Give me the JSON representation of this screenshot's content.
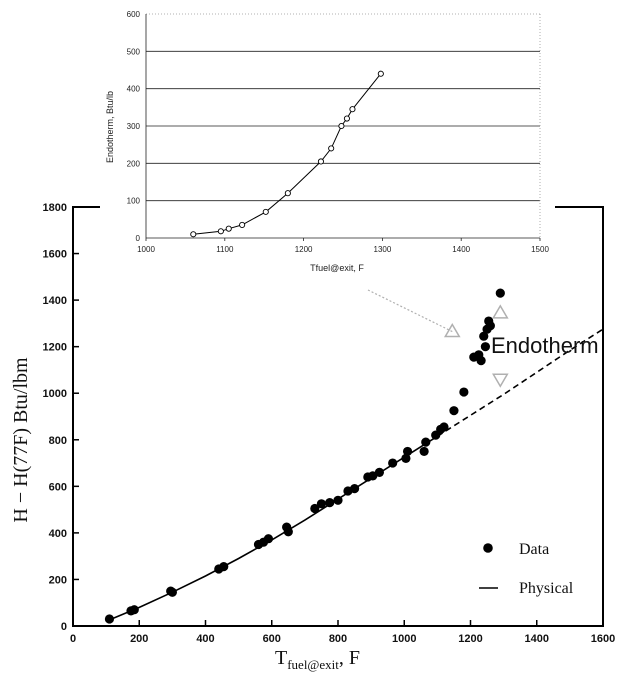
{
  "chart_data": [
    {
      "type": "scatter",
      "xlabel": "T",
      "xlabel_sub": "fuel@exit",
      "xlabel_suffix": ", F",
      "ylabel": "H − H(77F) Btu/lbm",
      "xlim": [
        0,
        1600
      ],
      "ylim": [
        0,
        1800
      ],
      "xticks": [
        0,
        200,
        400,
        600,
        800,
        1000,
        1200,
        1400,
        1600
      ],
      "yticks": [
        0,
        200,
        400,
        600,
        800,
        1000,
        1200,
        1400,
        1600,
        1800
      ],
      "grid": false,
      "legend_position": "bottom-right",
      "series": [
        {
          "name": "Data",
          "kind": "scatter",
          "color": "#000000",
          "points": [
            [
              110,
              30
            ],
            [
              175,
              65
            ],
            [
              185,
              70
            ],
            [
              295,
              150
            ],
            [
              300,
              145
            ],
            [
              440,
              245
            ],
            [
              455,
              255
            ],
            [
              560,
              350
            ],
            [
              575,
              360
            ],
            [
              590,
              375
            ],
            [
              645,
              425
            ],
            [
              650,
              405
            ],
            [
              730,
              505
            ],
            [
              750,
              525
            ],
            [
              775,
              530
            ],
            [
              800,
              540
            ],
            [
              830,
              580
            ],
            [
              850,
              590
            ],
            [
              890,
              640
            ],
            [
              905,
              645
            ],
            [
              925,
              660
            ],
            [
              965,
              700
            ],
            [
              1005,
              720
            ],
            [
              1010,
              750
            ],
            [
              1060,
              750
            ],
            [
              1065,
              790
            ],
            [
              1095,
              820
            ],
            [
              1110,
              845
            ],
            [
              1120,
              855
            ],
            [
              1150,
              925
            ],
            [
              1180,
              1005
            ],
            [
              1210,
              1155
            ],
            [
              1225,
              1165
            ],
            [
              1232,
              1140
            ],
            [
              1240,
              1245
            ],
            [
              1245,
              1200
            ],
            [
              1250,
              1275
            ],
            [
              1255,
              1310
            ],
            [
              1260,
              1290
            ],
            [
              1290,
              1430
            ]
          ]
        },
        {
          "name": "Physical",
          "kind": "line",
          "color": "#000000",
          "points": [
            [
              100,
              20
            ],
            [
              200,
              80
            ],
            [
              300,
              145
            ],
            [
              400,
              215
            ],
            [
              500,
              290
            ],
            [
              600,
              370
            ],
            [
              700,
              455
            ],
            [
              800,
              545
            ],
            [
              900,
              635
            ],
            [
              1000,
              725
            ],
            [
              1100,
              815
            ]
          ],
          "extension": [
            [
              1100,
              815
            ],
            [
              1200,
              905
            ],
            [
              1300,
              995
            ],
            [
              1400,
              1090
            ],
            [
              1500,
              1185
            ],
            [
              1600,
              1275
            ]
          ]
        }
      ],
      "annotation": {
        "text": "Endotherm",
        "markers_y": [
          1345,
          1060
        ],
        "marker_x": 1290,
        "arrow_target": [
          1145,
          1265
        ],
        "marker_color": "#b0b0b0"
      }
    },
    {
      "type": "line",
      "xlabel": "Tfuel@exit, F",
      "ylabel": "Endotherm, Btu/lb",
      "xlim": [
        1000,
        1500
      ],
      "ylim": [
        0,
        600
      ],
      "xticks": [
        1000,
        1100,
        1200,
        1300,
        1400,
        1500
      ],
      "yticks": [
        0,
        100,
        200,
        300,
        400,
        500,
        600
      ],
      "grid": true,
      "series": [
        {
          "name": "Endotherm",
          "marker": "open-circle",
          "color": "#000000",
          "points": [
            [
              1060,
              10
            ],
            [
              1095,
              18
            ],
            [
              1105,
              25
            ],
            [
              1122,
              35
            ],
            [
              1152,
              70
            ],
            [
              1180,
              120
            ],
            [
              1222,
              205
            ],
            [
              1235,
              240
            ],
            [
              1248,
              300
            ],
            [
              1255,
              320
            ],
            [
              1262,
              345
            ],
            [
              1298,
              440
            ]
          ]
        }
      ]
    }
  ]
}
